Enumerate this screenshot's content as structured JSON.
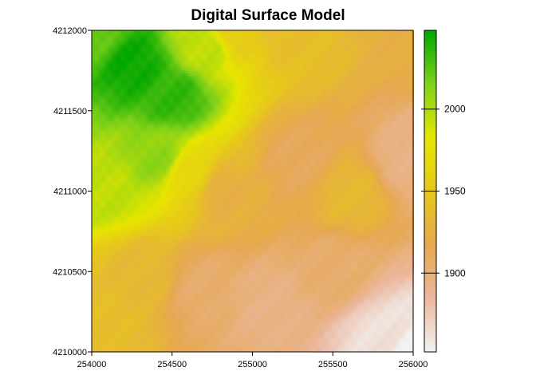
{
  "chart_data": {
    "type": "heatmap",
    "title": "Digital Surface Model",
    "xlabel": "",
    "ylabel": "",
    "xlim": [
      254000,
      256000
    ],
    "ylim": [
      4210000,
      4212000
    ],
    "x_ticks": [
      {
        "value": 254000,
        "label": "254000"
      },
      {
        "value": 254500,
        "label": "254500"
      },
      {
        "value": 255000,
        "label": "255000"
      },
      {
        "value": 255500,
        "label": "255500"
      },
      {
        "value": 256000,
        "label": "256000"
      }
    ],
    "y_ticks": [
      {
        "value": 4210000,
        "label": "4210000"
      },
      {
        "value": 4210500,
        "label": "4210500"
      },
      {
        "value": 4211000,
        "label": "4211000"
      },
      {
        "value": 4211500,
        "label": "4211500"
      },
      {
        "value": 4212000,
        "label": "4212000"
      }
    ],
    "colorbar": {
      "range": [
        1852,
        2048
      ],
      "ticks": [
        {
          "value": 1900,
          "label": "1900"
        },
        {
          "value": 1950,
          "label": "1950"
        },
        {
          "value": 2000,
          "label": "2000"
        }
      ],
      "palette": [
        "#f2f2f2",
        "#ebb89e",
        "#e6a850",
        "#e6c81c",
        "#e6e600",
        "#7fd11a",
        "#00a600"
      ]
    },
    "surface": {
      "grid": "elevation sampled at surface-model points (x, y in map units, z elevation)",
      "points": [
        [
          254000,
          4212000,
          2020
        ],
        [
          254250,
          4211800,
          2045
        ],
        [
          254500,
          4211600,
          2035
        ],
        [
          254700,
          4211900,
          1995
        ],
        [
          254900,
          4212000,
          1955
        ],
        [
          255200,
          4212000,
          1940
        ],
        [
          256000,
          4212000,
          1925
        ],
        [
          254100,
          4211000,
          1995
        ],
        [
          254400,
          4211200,
          2010
        ],
        [
          254600,
          4211100,
          1965
        ],
        [
          254800,
          4211000,
          1925
        ],
        [
          255300,
          4211200,
          1912
        ],
        [
          255600,
          4211000,
          1935
        ],
        [
          255950,
          4211200,
          1895
        ],
        [
          254050,
          4210200,
          1940
        ],
        [
          254300,
          4210500,
          1935
        ],
        [
          254700,
          4210400,
          1905
        ],
        [
          255100,
          4210300,
          1895
        ],
        [
          255500,
          4210500,
          1905
        ],
        [
          255800,
          4210100,
          1862
        ],
        [
          256000,
          4210000,
          1852
        ]
      ]
    }
  }
}
